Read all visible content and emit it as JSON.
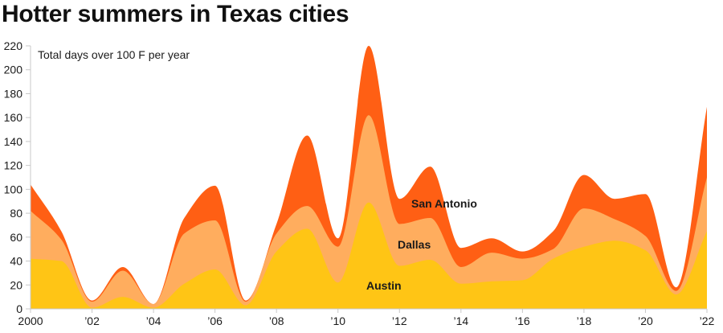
{
  "title": "Hotter summers in Texas cities",
  "chart_data": {
    "type": "area",
    "stacked": true,
    "smooth": true,
    "title": "Hotter summers in Texas cities",
    "subtitle": "Total days over 100 F per year",
    "xlabel": "",
    "ylabel": "",
    "x": [
      2000,
      2001,
      2002,
      2003,
      2004,
      2005,
      2006,
      2007,
      2008,
      2009,
      2010,
      2011,
      2012,
      2013,
      2014,
      2015,
      2016,
      2017,
      2018,
      2019,
      2020,
      2021,
      2022
    ],
    "xlim": [
      2000,
      2022
    ],
    "ylim": [
      0,
      220
    ],
    "x_ticks": [
      {
        "value": 2000,
        "label": "2000"
      },
      {
        "value": 2002,
        "label": "’02"
      },
      {
        "value": 2004,
        "label": "’04"
      },
      {
        "value": 2006,
        "label": "’06"
      },
      {
        "value": 2008,
        "label": "’08"
      },
      {
        "value": 2010,
        "label": "’10"
      },
      {
        "value": 2012,
        "label": "’12"
      },
      {
        "value": 2014,
        "label": "’14"
      },
      {
        "value": 2016,
        "label": "’16"
      },
      {
        "value": 2018,
        "label": "’18"
      },
      {
        "value": 2020,
        "label": "’20"
      },
      {
        "value": 2022,
        "label": "’22"
      }
    ],
    "y_ticks": [
      {
        "value": 0,
        "label": "0"
      },
      {
        "value": 20,
        "label": "20"
      },
      {
        "value": 40,
        "label": "40"
      },
      {
        "value": 60,
        "label": "60"
      },
      {
        "value": 80,
        "label": "80"
      },
      {
        "value": 100,
        "label": "100"
      },
      {
        "value": 120,
        "label": "120"
      },
      {
        "value": 140,
        "label": "140"
      },
      {
        "value": 160,
        "label": "160"
      },
      {
        "value": 180,
        "label": "180"
      },
      {
        "value": 200,
        "label": "200"
      },
      {
        "value": 220,
        "label": "220"
      }
    ],
    "grid": false,
    "legend": "inline",
    "series": [
      {
        "name": "Austin",
        "color": "#FFC515",
        "values": [
          42,
          40,
          1,
          10,
          1,
          21,
          33,
          3,
          48,
          67,
          22,
          89,
          36,
          41,
          21,
          23,
          24,
          42,
          52,
          57,
          49,
          12,
          65
        ]
      },
      {
        "name": "Dallas",
        "color": "#FFAD5E",
        "values": [
          40,
          18,
          5,
          22,
          3,
          42,
          41,
          3,
          15,
          19,
          30,
          73,
          35,
          35,
          14,
          24,
          18,
          8,
          32,
          18,
          12,
          3,
          45
        ]
      },
      {
        "name": "San Antonio",
        "color": "#FF5F14",
        "values": [
          22,
          7,
          1,
          3,
          0,
          13,
          29,
          1,
          8,
          59,
          7,
          58,
          21,
          43,
          16,
          12,
          6,
          15,
          28,
          17,
          35,
          3,
          59
        ]
      }
    ],
    "axis_color": "#c8c8c8"
  }
}
